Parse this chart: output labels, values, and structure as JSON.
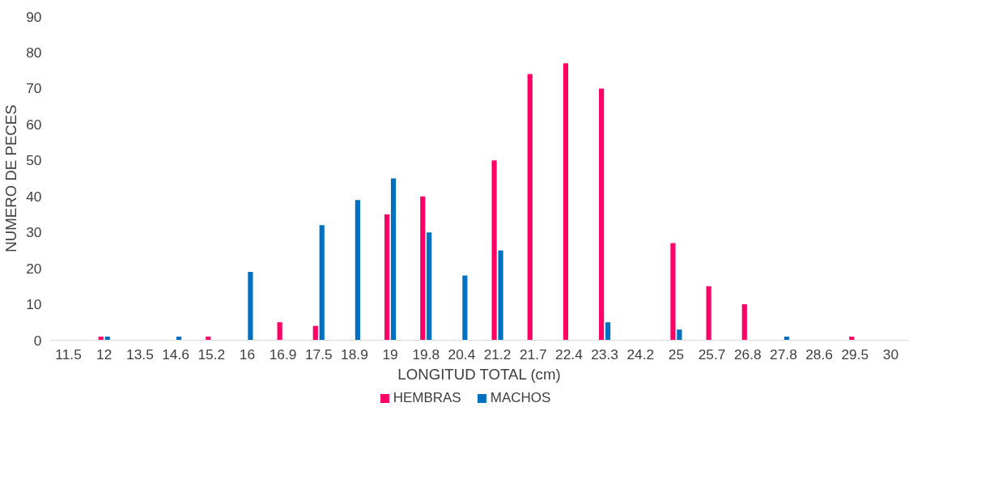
{
  "chart_data": {
    "type": "bar",
    "xlabel": "LONGITUD TOTAL (cm)",
    "ylabel": "NUMERO DE PECES",
    "categories": [
      "11.5",
      "12",
      "13.5",
      "14.6",
      "15.2",
      "16",
      "16.9",
      "17.5",
      "18.9",
      "19",
      "19.8",
      "20.4",
      "21.2",
      "21.7",
      "22.4",
      "23.3",
      "24.2",
      "25",
      "25.7",
      "26.8",
      "27.8",
      "28.6",
      "29.5",
      "30"
    ],
    "series": [
      {
        "name": "HEMBRAS",
        "color": "#ff0066",
        "values": [
          0,
          1,
          0,
          0,
          1,
          0,
          5,
          4,
          0,
          35,
          40,
          0,
          50,
          74,
          77,
          70,
          0,
          27,
          15,
          10,
          0,
          0,
          1,
          0
        ]
      },
      {
        "name": "MACHOS",
        "color": "#0070c0",
        "values": [
          0,
          1,
          0,
          1,
          0,
          19,
          0,
          32,
          39,
          45,
          30,
          18,
          25,
          0,
          0,
          5,
          0,
          3,
          0,
          0,
          1,
          0,
          0,
          0
        ]
      }
    ],
    "ylim": [
      0,
      90
    ],
    "yticks": [
      0,
      10,
      20,
      30,
      40,
      50,
      60,
      70,
      80,
      90
    ],
    "grid": false,
    "legend": "bottom"
  }
}
